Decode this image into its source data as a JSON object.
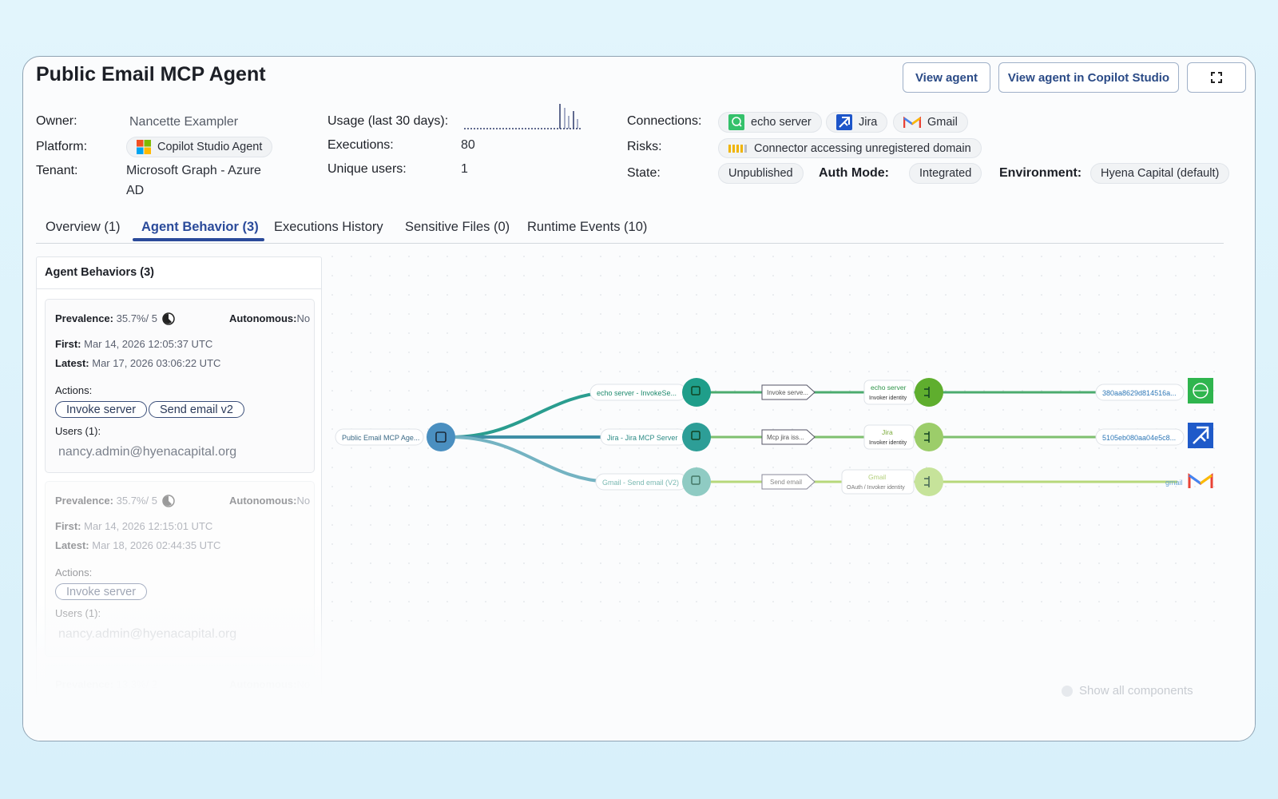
{
  "header": {
    "title": "Public Email MCP Agent",
    "view_agent": "View agent",
    "view_copilot": "View agent in Copilot Studio",
    "expand_icon": "expand-icon"
  },
  "meta": {
    "owner_label": "Owner:",
    "owner": "Nancette Exampler",
    "platform_label": "Platform:",
    "platform": "Copilot Studio Agent",
    "tenant_label": "Tenant:",
    "tenant_line1": "Microsoft Graph - Azure",
    "tenant_line2": "AD",
    "usage_label": "Usage (last 30 days):",
    "executions_label": "Executions:",
    "executions": "80",
    "unique_users_label": "Unique users:",
    "unique_users": "1",
    "connections_label": "Connections:",
    "connections": [
      "echo server",
      "Jira",
      "Gmail"
    ],
    "risks_label": "Risks:",
    "risk": "Connector accessing unregistered domain",
    "state_label": "State:",
    "state": "Unpublished",
    "auth_label": "Auth Mode:",
    "auth": "Integrated",
    "env_label": "Environment:",
    "env": "Hyena Capital (default)"
  },
  "tabs": [
    "Overview (1)",
    "Agent Behavior (3)",
    "Executions History",
    "Sensitive Files (0)",
    "Runtime Events (10)"
  ],
  "behaviors": {
    "title": "Agent Behaviors (3)",
    "cards": [
      {
        "prevalence_label": "Prevalence:",
        "prevalence": "35.7%/  5",
        "autonomous_label": "Autonomous:",
        "autonomous": "No",
        "first_label": "First:",
        "first": "Mar 14, 2026 12:05:37 UTC",
        "latest_label": "Latest:",
        "latest": "Mar 17, 2026 03:06:22 UTC",
        "actions_label": "Actions:",
        "actions": [
          "Invoke server",
          "Send email v2"
        ],
        "users_label": "Users (1):",
        "user": "nancy.admin@hyenacapital.org"
      },
      {
        "prevalence_label": "Prevalence:",
        "prevalence": "35.7%/  5",
        "autonomous_label": "Autonomous:",
        "autonomous": "No",
        "first_label": "First:",
        "first": "Mar 14, 2026 12:15:01 UTC",
        "latest_label": "Latest:",
        "latest": "Mar 18, 2026 02:44:35 UTC",
        "actions_label": "Actions:",
        "actions": [
          "Invoke server"
        ],
        "users_label": "Users (1):",
        "user": "nancy.admin@hyenacapital.org"
      },
      {
        "prevalence_label": "Prevalence:",
        "prevalence": "13.3%/  2",
        "autonomous_label": "Autonomous:",
        "autonomous": "No"
      }
    ]
  },
  "graph": {
    "root": "Public Email MCP Age...",
    "rows": [
      {
        "tool": "echo server - InvokeSe...",
        "action": "Invoke serve...",
        "conn": "echo server",
        "identity": "Invoker identity",
        "target": "380aa8629d814516a...",
        "color": "#1f9e8a",
        "icon": "globe-icon"
      },
      {
        "tool": "Jira - Jira MCP Server",
        "action": "Mcp jira iss...",
        "conn": "Jira",
        "identity": "Invoker identity",
        "target": "5105eb080aa04e5c8...",
        "color": "#2d9e97",
        "icon": "jira-icon"
      },
      {
        "tool": "Gmail - Send email (V2)",
        "action": "Send email",
        "conn": "Gmail",
        "identity": "OAuth / Invoker identity",
        "target": "gmail",
        "color": "#6fc3b9",
        "icon": "gmail-icon"
      }
    ],
    "show_all": "Show all components"
  }
}
